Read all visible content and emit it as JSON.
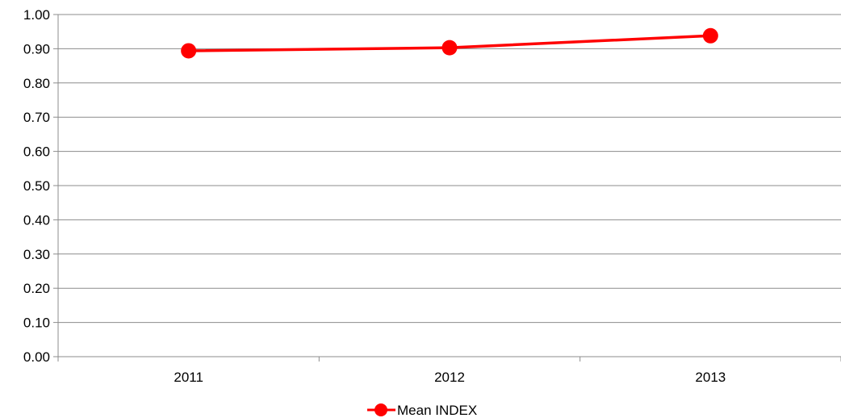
{
  "chart_data": {
    "type": "line",
    "categories": [
      "2011",
      "2012",
      "2013"
    ],
    "series": [
      {
        "name": "Mean INDEX",
        "values": [
          0.894,
          0.903,
          0.938
        ],
        "color": "#ff0000"
      }
    ],
    "ylim": [
      0,
      1
    ],
    "y_ticks": [
      "0.00",
      "0.10",
      "0.20",
      "0.30",
      "0.40",
      "0.50",
      "0.60",
      "0.70",
      "0.80",
      "0.90",
      "1.00"
    ],
    "grid": true,
    "legend_position": "bottom",
    "title": "",
    "xlabel": "",
    "ylabel": ""
  }
}
